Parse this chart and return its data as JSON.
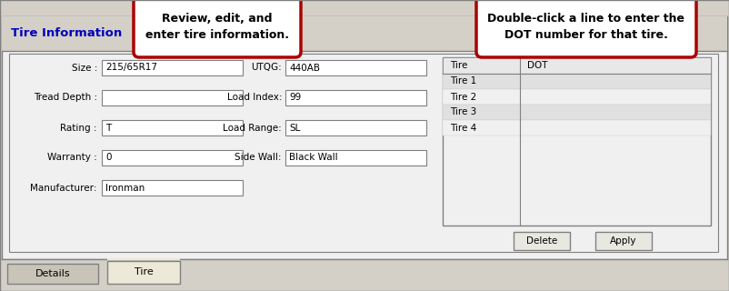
{
  "bg_color": "#d4d0c8",
  "panel_color": "#ece9d8",
  "inner_panel_color": "#f0f0f0",
  "white": "#ffffff",
  "blue_title": "#0000bb",
  "dark_text": "#000000",
  "border_dark": "#808080",
  "border_light": "#c0c0c0",
  "callout_border": "#aa0000",
  "callout_bg": "#ffffff",
  "table_header_bg": "#e8e8e8",
  "row_gray": "#e0e0e0",
  "row_white": "#f4f4f4",
  "button_color": "#e8e8e0",
  "tab_active_color": "#ece9d8",
  "tab_inactive_color": "#c8c5b8",
  "title": "Tire Information",
  "callout1": "Review, edit, and\nenter tire information.",
  "callout2": "Double-click a line to enter the\nDOT number for that tire.",
  "left_labels": [
    "Size :",
    "Tread Depth :",
    "Rating :",
    "Warranty :",
    "Manufacturer:"
  ],
  "left_values": [
    "215/65R17",
    "",
    "T",
    "0",
    "Ironman"
  ],
  "right_labels": [
    "UTQG:",
    "Load Index:",
    "Load Range:",
    "Side Wall:"
  ],
  "right_values": [
    "440AB",
    "99",
    "SL",
    "Black Wall"
  ],
  "tire_rows": [
    "Tire 1",
    "Tire 2",
    "Tire 3",
    "Tire 4"
  ],
  "tire_row_colors": [
    "#e0e0e0",
    "#f0f0f0",
    "#e0e0e0",
    "#f0f0f0"
  ],
  "tab_labels": [
    "Details",
    "Tire"
  ],
  "button_labels": [
    "Delete",
    "Apply"
  ]
}
